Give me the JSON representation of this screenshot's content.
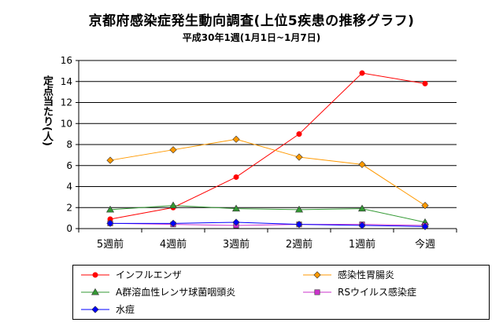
{
  "chart_data": {
    "type": "line",
    "title": "京都府感染症発生動向調査(上位5疾患の推移グラフ)",
    "subtitle": "平成30年1週(1月1日~1月7日)",
    "xlabel": "",
    "ylabel": "定点当たり(人)",
    "ylim": [
      0,
      16
    ],
    "yticks": [
      0,
      2,
      4,
      6,
      8,
      10,
      12,
      14,
      16
    ],
    "grid": true,
    "legend_position": "bottom",
    "categories": [
      "5週前",
      "4週前",
      "3週前",
      "2週前",
      "1週前",
      "今週"
    ],
    "series": [
      {
        "name": "インフルエンザ",
        "color": "#ff0000",
        "marker": "circle",
        "values": [
          0.9,
          2.0,
          4.9,
          9.0,
          14.8,
          13.8
        ]
      },
      {
        "name": "感染性胃腸炎",
        "color": "#ff9900",
        "marker": "diamond",
        "values": [
          6.5,
          7.5,
          8.5,
          6.8,
          6.1,
          2.2
        ]
      },
      {
        "name": "A群溶血性レンサ球菌咽頭炎",
        "color": "#339933",
        "marker": "triangle",
        "values": [
          1.8,
          2.2,
          1.9,
          1.8,
          1.9,
          0.6
        ]
      },
      {
        "name": "RSウイルス感染症",
        "color": "#cc33cc",
        "marker": "square",
        "values": [
          0.5,
          0.4,
          0.3,
          0.4,
          0.4,
          0.3
        ]
      },
      {
        "name": "水痘",
        "color": "#0000ff",
        "marker": "diamond",
        "values": [
          0.5,
          0.5,
          0.6,
          0.4,
          0.3,
          0.2
        ]
      }
    ]
  }
}
